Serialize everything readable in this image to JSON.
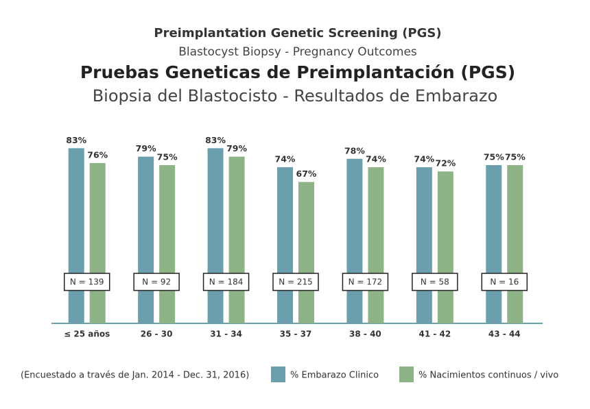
{
  "chart_data": {
    "type": "bar",
    "titles": [
      "Preimplantation Genetic Screening (PGS)",
      "Blastocyst Biopsy - Pregnancy Outcomes",
      "Pruebas Geneticas de Preimplantación (PGS)",
      "Biopsia del Blastocisto - Resultados de Embarazo"
    ],
    "categories": [
      "≤ 25 años",
      "26 - 30",
      "31 - 34",
      "35 - 37",
      "38 - 40",
      "41 - 42",
      "43 - 44"
    ],
    "series": [
      {
        "name": "% Embarazo Clinico",
        "color": "#6b9fae",
        "values": [
          83,
          79,
          83,
          74,
          78,
          74,
          75
        ],
        "value_labels": [
          "83%",
          "79%",
          "83%",
          "74%",
          "78%",
          "74%",
          "75%"
        ]
      },
      {
        "name": "% Nacimientos continuos / vivo",
        "color": "#8db387",
        "values": [
          76,
          75,
          79,
          67,
          74,
          72,
          75
        ],
        "value_labels": [
          "76%",
          "75%",
          "79%",
          "67%",
          "74%",
          "72%",
          "75%"
        ]
      }
    ],
    "n_labels": [
      "N = 139",
      "N = 92",
      "N = 184",
      "N = 215",
      "N = 172",
      "N = 58",
      "N = 16"
    ],
    "note": "(Encuestado a través de  Jan. 2014 - Dec. 31, 2016)",
    "ylim": [
      0,
      100
    ]
  }
}
